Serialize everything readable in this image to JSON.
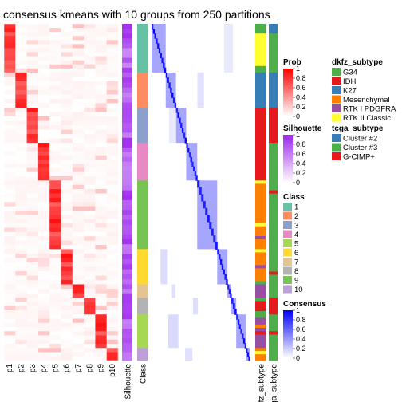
{
  "chart_data": {
    "type": "heatmap",
    "title": "consensus kmeans with 10 groups from 250 partitions",
    "prob_columns": [
      "p1",
      "p2",
      "p3",
      "p4",
      "p5",
      "p6",
      "p7",
      "p8",
      "p9",
      "p10"
    ],
    "annotation_columns": [
      "Silhouette",
      "Class",
      "dkfz_subtype",
      "tcga_subtype"
    ],
    "class_blocks": [
      {
        "class": 1,
        "size": 58,
        "prob_col": 1
      },
      {
        "class": 2,
        "size": 42,
        "prob_col": 2
      },
      {
        "class": 3,
        "size": 42,
        "prob_col": 3
      },
      {
        "class": 4,
        "size": 45,
        "prob_col": 4
      },
      {
        "class": 9,
        "size": 82,
        "prob_col": 5
      },
      {
        "class": 6,
        "size": 42,
        "prob_col": 6
      },
      {
        "class": 7,
        "size": 16,
        "prob_col": 7
      },
      {
        "class": 8,
        "size": 20,
        "prob_col": 8
      },
      {
        "class": 5,
        "size": 40,
        "prob_col": 9
      },
      {
        "class": 10,
        "size": 15,
        "prob_col": 10
      }
    ],
    "legends": {
      "prob": {
        "title": "Prob",
        "ticks": [
          "1",
          "0.8",
          "0.6",
          "0.4",
          "0.2",
          "0"
        ],
        "low": "#ffffff",
        "high": "#ff0000"
      },
      "silhouette": {
        "title": "Silhouette",
        "ticks": [
          "1",
          "0.8",
          "0.6",
          "0.4",
          "0.2",
          "0"
        ],
        "low": "#ffffff",
        "high": "#9e25ef"
      },
      "class": {
        "title": "Class",
        "items": [
          "1",
          "2",
          "3",
          "4",
          "5",
          "6",
          "7",
          "8",
          "9",
          "10"
        ]
      },
      "consensus": {
        "title": "Consensus",
        "ticks": [
          "1",
          "0.8",
          "0.6",
          "0.4",
          "0.2",
          "0"
        ],
        "low": "#ffffff",
        "high": "#0000ff"
      },
      "dkfz_subtype": {
        "title": "dkfz_subtype",
        "items": [
          "G34",
          "IDH",
          "K27",
          "Mesenchymal",
          "RTK I PDGFRA",
          "RTK II Classic"
        ]
      },
      "tcga_subtype": {
        "title": "tcga_subtype",
        "items": [
          "Cluster #2",
          "Cluster #3",
          "G-CIMP+"
        ]
      }
    },
    "colors": {
      "class": {
        "1": "#66c2a5",
        "2": "#fc8d62",
        "3": "#8da0cb",
        "4": "#e78ac3",
        "5": "#a6d854",
        "6": "#ffd92f",
        "7": "#e5c494",
        "8": "#b3b3b3",
        "9": "#77c454",
        "10": "#bea0d8"
      },
      "dkfz_subtype": {
        "G34": "#4daf4a",
        "IDH": "#e41a1c",
        "K27": "#377eb8",
        "Mesenchymal": "#ff7f00",
        "RTK I PDGFRA": "#984ea3",
        "RTK II Classic": "#ffff33"
      },
      "tcga_subtype": {
        "Cluster #2": "#377eb8",
        "Cluster #3": "#4daf4a",
        "G-CIMP+": "#e41a1c"
      }
    }
  }
}
